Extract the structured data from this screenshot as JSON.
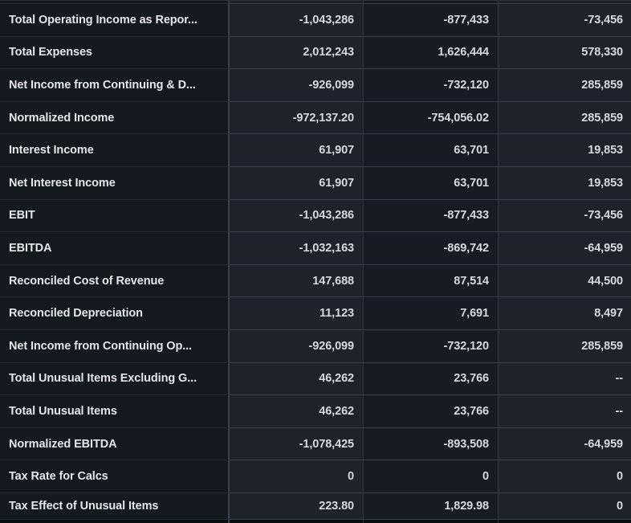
{
  "colors": {
    "bg-page": "#0b0c0f",
    "bg-label": "#14181f",
    "bg-light": "#1e222b",
    "bg-dark": "#171b23",
    "border-strong": "#3a414e",
    "border-mid": "#313844",
    "border-label": "#262b33",
    "text-label": "#e4e6ea",
    "text-value": "#d6d9de"
  },
  "table": {
    "missing_value_marker": "--",
    "rows": [
      {
        "label": "Total Operating Income as Repor...",
        "values": [
          "-1,043,286",
          "-877,433",
          "-73,456"
        ]
      },
      {
        "label": "Total Expenses",
        "values": [
          "2,012,243",
          "1,626,444",
          "578,330"
        ]
      },
      {
        "label": "Net Income from Continuing & D...",
        "values": [
          "-926,099",
          "-732,120",
          "285,859"
        ]
      },
      {
        "label": "Normalized Income",
        "values": [
          "-972,137.20",
          "-754,056.02",
          "285,859"
        ]
      },
      {
        "label": "Interest Income",
        "values": [
          "61,907",
          "63,701",
          "19,853"
        ]
      },
      {
        "label": "Net Interest Income",
        "values": [
          "61,907",
          "63,701",
          "19,853"
        ]
      },
      {
        "label": "EBIT",
        "values": [
          "-1,043,286",
          "-877,433",
          "-73,456"
        ]
      },
      {
        "label": "EBITDA",
        "values": [
          "-1,032,163",
          "-869,742",
          "-64,959"
        ]
      },
      {
        "label": "Reconciled Cost of Revenue",
        "values": [
          "147,688",
          "87,514",
          "44,500"
        ]
      },
      {
        "label": "Reconciled Depreciation",
        "values": [
          "11,123",
          "7,691",
          "8,497"
        ]
      },
      {
        "label": "Net Income from Continuing Op...",
        "values": [
          "-926,099",
          "-732,120",
          "285,859"
        ]
      },
      {
        "label": "Total Unusual Items Excluding G...",
        "values": [
          "46,262",
          "23,766",
          "--"
        ]
      },
      {
        "label": "Total Unusual Items",
        "values": [
          "46,262",
          "23,766",
          "--"
        ]
      },
      {
        "label": "Normalized EBITDA",
        "values": [
          "-1,078,425",
          "-893,508",
          "-64,959"
        ]
      },
      {
        "label": "Tax Rate for Calcs",
        "values": [
          "0",
          "0",
          "0"
        ]
      },
      {
        "label": "Tax Effect of Unusual Items",
        "values": [
          "223.80",
          "1,829.98",
          "0"
        ]
      }
    ]
  }
}
